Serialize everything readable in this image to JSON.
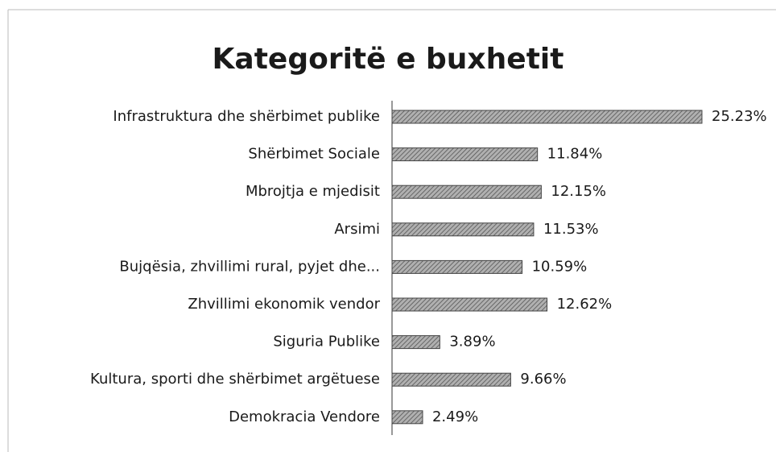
{
  "chart_data": {
    "type": "barh",
    "title": "Kategoritë e buxhetit",
    "categories": [
      "Infrastruktura dhe shërbimet publike",
      "Shërbimet Sociale",
      "Mbrojtja e mjedisit",
      "Arsimi",
      "Bujqësia, zhvillimi rural, pyjet dhe...",
      "Zhvillimi ekonomik vendor",
      "Siguria Publike",
      "Kultura, sporti dhe shërbimet argëtuese",
      "Demokracia Vendore"
    ],
    "values": [
      25.23,
      11.84,
      12.15,
      11.53,
      10.59,
      12.62,
      3.89,
      9.66,
      2.49
    ],
    "value_labels": [
      "25.23%",
      "11.84%",
      "12.15%",
      "11.53%",
      "10.59%",
      "12.62%",
      "3.89%",
      "9.66%",
      "2.49%"
    ],
    "color": "#8c8c8c"
  }
}
